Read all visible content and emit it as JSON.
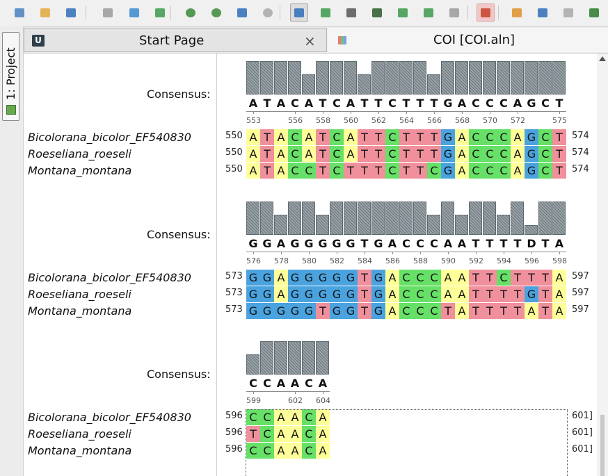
{
  "toolbar": {
    "buttons": [
      {
        "icon": "new-project-icon",
        "color": "#4a7fc0"
      },
      {
        "icon": "open-folder-icon",
        "color": "#e0a93a"
      },
      {
        "icon": "save-icon",
        "color": "#2f6db8"
      },
      {
        "icon": "copy-icon",
        "color": "#9a9a9a"
      },
      {
        "icon": "add-document-icon",
        "color": "#3a8ad0"
      },
      {
        "icon": "export-icon",
        "color": "#3a9a4a"
      },
      {
        "icon": "zoom-in-icon",
        "color": "#3a8a3a"
      },
      {
        "icon": "zoom-out-icon",
        "color": "#3a8a3a"
      },
      {
        "icon": "fit-to-window-icon",
        "color": "#2f6db8"
      },
      {
        "icon": "zoom-reset-icon",
        "color": "#a8a8a8"
      },
      {
        "icon": "alignment-view-icon",
        "color": "#2f6db8"
      },
      {
        "icon": "add-sequence-icon",
        "color": "#3a9a4a"
      },
      {
        "icon": "sequence-image-icon",
        "color": "#555555"
      },
      {
        "icon": "tree-icon",
        "color": "#2a5a2a"
      },
      {
        "icon": "sort-icon",
        "color": "#3a9a4a"
      },
      {
        "icon": "align-icon",
        "color": "#3a9a4a"
      },
      {
        "icon": "collapse-icon",
        "color": "#9a9a9a"
      },
      {
        "icon": "wrap-rows-icon",
        "color": "#c8402a"
      },
      {
        "icon": "clipboard-icon",
        "color": "#e0902a"
      },
      {
        "icon": "undo-icon",
        "color": "#2f6db8"
      },
      {
        "icon": "redo-icon",
        "color": "#a8a8a8"
      },
      {
        "icon": "swap-icon",
        "color": "#2a7a2a"
      }
    ]
  },
  "sidebar": {
    "project_tab": "1: Project"
  },
  "tabs": [
    {
      "label": "Start Page",
      "close": "×"
    },
    {
      "label": "COI [COI.aln]"
    }
  ],
  "colors": {
    "A": "#ffff99",
    "C": "#66e066",
    "G": "#4aa3df",
    "T": "#f0909c",
    "gap": "#ffffff"
  },
  "alignment": {
    "consensus_label": "Consensus:",
    "blocks": [
      {
        "consensus": "ATACATCATTCTTTGACCCAGCT",
        "bar_levels": [
          1,
          1,
          1,
          1,
          0.6,
          1,
          1,
          1,
          0.6,
          1,
          1,
          1,
          1,
          0.6,
          1,
          1,
          1,
          1,
          1,
          1,
          1,
          1,
          1
        ],
        "positions": [
          "553",
          "556",
          "558",
          "560",
          "562",
          "564",
          "566",
          "568",
          "570",
          "572",
          "575"
        ],
        "rows": [
          {
            "name": "Bicolorana_bicolor_EF540830",
            "start": "550",
            "end": "574",
            "seq": "ATACATCATTCTTTGACCCAGCT"
          },
          {
            "name": "Roeseliana_roeseli",
            "start": "550",
            "end": "574",
            "seq": "ATACATCATTCTTTGACCCAGCT"
          },
          {
            "name": "Montana_montana",
            "start": "550",
            "end": "574",
            "seq": "ATACCTCTTTCTTCGACCCAGCT"
          }
        ]
      },
      {
        "consensus": "GGAGGGGGTGACCCAATTTTDTA",
        "bar_levels": [
          1,
          1,
          0.6,
          1,
          1,
          0.6,
          1,
          1,
          1,
          1,
          1,
          1,
          1,
          0.6,
          1,
          0.6,
          1,
          1,
          0.6,
          1,
          0.3,
          1,
          1
        ],
        "positions": [
          "576",
          "578",
          "580",
          "582",
          "584",
          "586",
          "588",
          "590",
          "592",
          "594",
          "596",
          "598"
        ],
        "rows": [
          {
            "name": "Bicolorana_bicolor_EF540830",
            "start": "573",
            "end": "597",
            "seq": "GGAGGGGGTGACCCAATTCTTTA"
          },
          {
            "name": "Roeseliana_roeseli",
            "start": "573",
            "end": "597",
            "seq": "GGAGGGGGTGACCCAATTTTGTA"
          },
          {
            "name": "Montana_montana",
            "start": "573",
            "end": "597",
            "seq": "GGGGGTGGTGACCCTATTTTATA"
          }
        ]
      },
      {
        "consensus": "CCAACA",
        "bar_levels": [
          0.6,
          1,
          1,
          1,
          1,
          1
        ],
        "positions": [
          "599",
          "602",
          "604"
        ],
        "rows": [
          {
            "name": "Bicolorana_bicolor_EF540830",
            "start": "596",
            "end": "601]",
            "seq": "CCAACA"
          },
          {
            "name": "Roeseliana_roeseli",
            "start": "596",
            "end": "601]",
            "seq": "TCAACA"
          },
          {
            "name": "Montana_montana",
            "start": "596",
            "end": "601]",
            "seq": "CCAACA"
          }
        ]
      }
    ]
  }
}
